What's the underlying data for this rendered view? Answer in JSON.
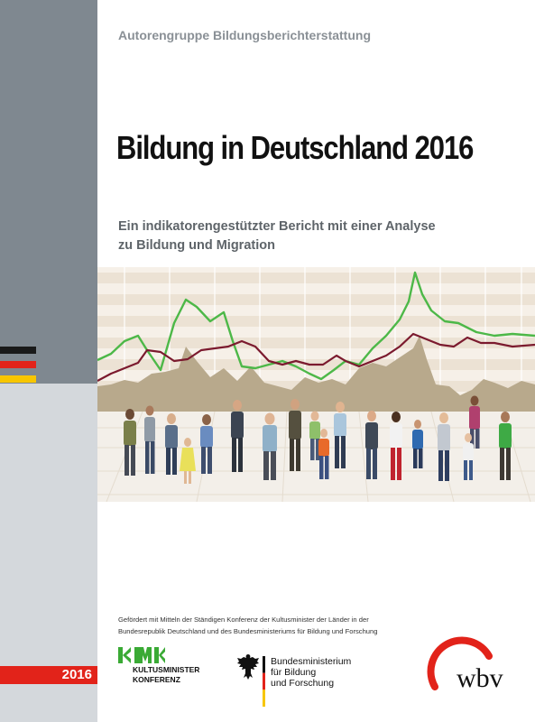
{
  "cover": {
    "author": "Autorengruppe Bildungsberichterstattung",
    "title": "Bildung in Deutschland 2016",
    "subtitle_line1": "Ein indikatorengestützter Bericht mit einer Analyse",
    "subtitle_line2": "zu Bildung und Migration",
    "year": "2016"
  },
  "funding": {
    "line1": "Gefördert mit Mitteln der Ständigen Konferenz der Kultusminister der Länder in der",
    "line2": "Bundesrepublik Deutschland und des Bundesministeriums für Bildung und Forschung"
  },
  "logos": {
    "kmk_line1": "KULTUSMINISTER",
    "kmk_line2": "KONFERENZ",
    "bmbf_line1": "Bundesministerium",
    "bmbf_line2": "für Bildung",
    "bmbf_line3": "und Forschung",
    "wbv": "wbv"
  },
  "colors": {
    "sidebar": "#7f8890",
    "accent_red": "#e2231a",
    "kmk_green": "#3aaa35",
    "green_line": "#4db848",
    "maroon_line": "#7b1a2e",
    "area": "#b8a98c"
  }
}
